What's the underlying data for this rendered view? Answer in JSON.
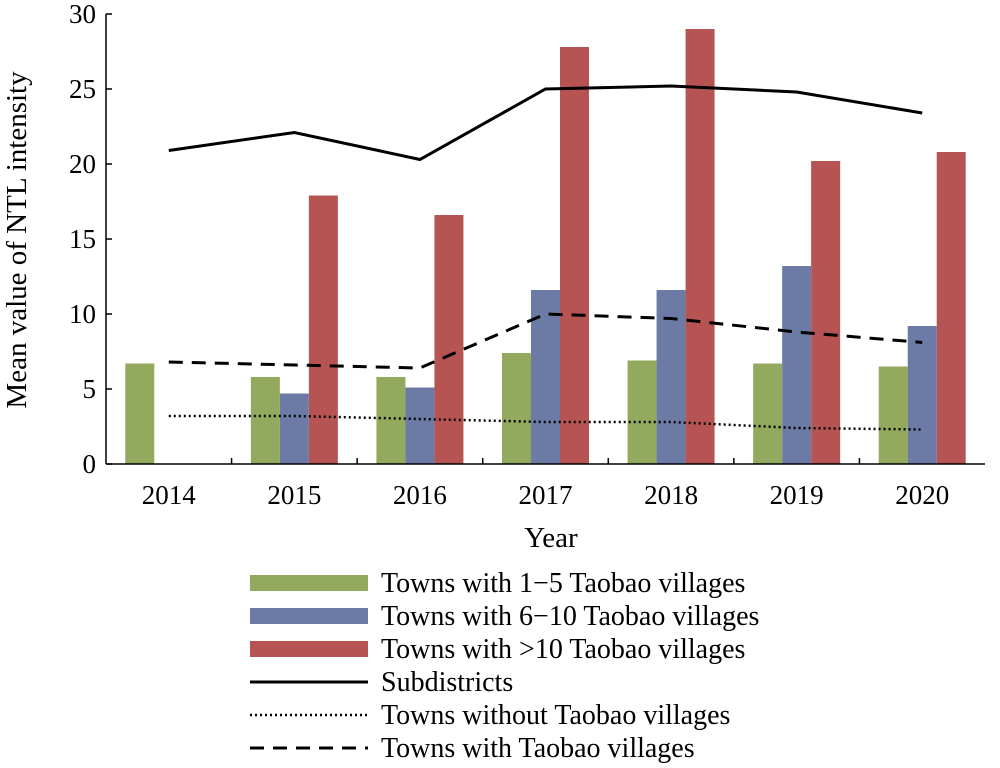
{
  "chart_data": {
    "type": "bar",
    "title": "",
    "xlabel": "Year",
    "ylabel": "Mean value of NTL intensity",
    "categories": [
      "2014",
      "2015",
      "2016",
      "2017",
      "2018",
      "2019",
      "2020"
    ],
    "ylim": [
      0,
      30
    ],
    "yticks": [
      0,
      5,
      10,
      15,
      20,
      25,
      30
    ],
    "legend_position": "bottom",
    "series": [
      {
        "name": "Towns with 1−5 Taobao villages",
        "kind": "bar",
        "color": "#93aa5e",
        "values": [
          6.7,
          5.8,
          5.8,
          7.4,
          6.9,
          6.7,
          6.5
        ]
      },
      {
        "name": "Towns with 6−10 Taobao villages",
        "kind": "bar",
        "color": "#6c7ba6",
        "values": [
          null,
          4.7,
          5.1,
          11.6,
          11.6,
          13.2,
          9.2
        ]
      },
      {
        "name": "Towns with >10 Taobao villages",
        "kind": "bar",
        "color": "#b65454",
        "values": [
          null,
          17.9,
          16.6,
          27.8,
          29.0,
          20.2,
          20.8
        ]
      },
      {
        "name": "Subdistricts",
        "kind": "line",
        "style": "solid",
        "color": "#000000",
        "values": [
          20.9,
          22.1,
          20.3,
          25.0,
          25.2,
          24.8,
          23.4
        ]
      },
      {
        "name": "Towns without Taobao villages",
        "kind": "line",
        "style": "dotted",
        "color": "#000000",
        "values": [
          3.2,
          3.2,
          3.0,
          2.8,
          2.8,
          2.4,
          2.3
        ]
      },
      {
        "name": "Towns with Taobao villages",
        "kind": "line",
        "style": "dashed",
        "color": "#000000",
        "values": [
          6.8,
          6.6,
          6.4,
          10.0,
          9.7,
          8.8,
          8.1
        ]
      }
    ]
  }
}
